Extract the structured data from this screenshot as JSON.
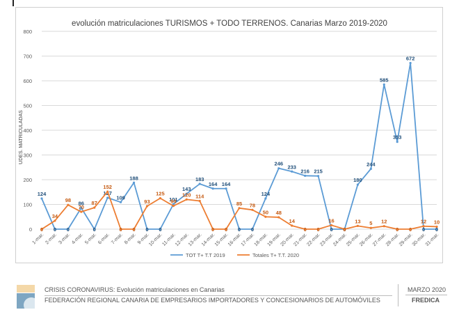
{
  "footer": {
    "line1": "CRISIS CORONAVIRUS: Evolución matriculaciones en Canarias",
    "line2": "FEDERACIÓN REGIONAL CANARIA DE EMPRESARIOS IMPORTADORES Y CONCESIONARIOS DE AUTOMÓVILES",
    "date": "MARZO 2020",
    "brand": "FREDICA"
  },
  "chart_data": {
    "type": "line",
    "title": "evolución matriculaciones TURISMOS + TODO TERRENOS. Canarias Marzo 2019-2020",
    "xlabel": "",
    "ylabel": "UDES. MATRICULADAS",
    "ylim": [
      0,
      800
    ],
    "yticks": [
      0,
      100,
      200,
      300,
      400,
      500,
      600,
      700,
      800
    ],
    "grid": true,
    "legend": "bottom",
    "categories": [
      "1-mar.",
      "2-mar.",
      "3-mar.",
      "4-mar.",
      "5-mar.",
      "6-mar.",
      "7-mar.",
      "8-mar.",
      "9-mar.",
      "10-mar.",
      "11-mar.",
      "12-mar.",
      "13-mar.",
      "14-mar.",
      "15-mar.",
      "16-mar.",
      "17-mar.",
      "18-mar.",
      "19-mar.",
      "20-mar.",
      "21-mar.",
      "22-mar.",
      "23-mar.",
      "24-mar.",
      "25-mar.",
      "26-mar.",
      "27-mar.",
      "28-mar.",
      "29-mar.",
      "30-mar.",
      "31-mar."
    ],
    "series": [
      {
        "name": "TOT T+ T.T 2019",
        "color": "#5b9bd5",
        "label_color": "#1f4e79",
        "values": [
          124,
          0,
          0,
          86,
          0,
          127,
          109,
          188,
          0,
          0,
          101,
          143,
          183,
          164,
          164,
          0,
          0,
          124,
          246,
          233,
          216,
          215,
          0,
          0,
          180,
          244,
          585,
          353,
          672,
          0,
          0
        ]
      },
      {
        "name": "Totales T+ T.T. 2020",
        "color": "#ed7d31",
        "label_color": "#c55a11",
        "values": [
          0,
          34,
          98,
          70,
          87,
          152,
          0,
          0,
          93,
          125,
          94,
          120,
          114,
          0,
          0,
          85,
          78,
          50,
          48,
          14,
          0,
          0,
          16,
          0,
          13,
          5,
          12,
          0,
          0,
          12,
          10
        ]
      }
    ]
  }
}
